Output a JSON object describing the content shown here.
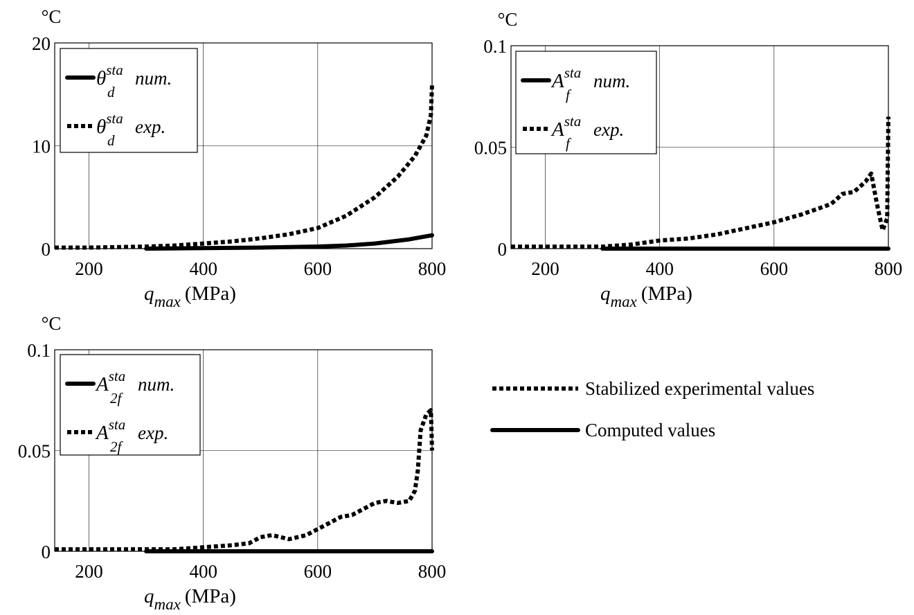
{
  "chart_data": [
    {
      "type": "line",
      "unit_label": "°C",
      "xlabel_var": "q",
      "xlabel_sub": "max",
      "xlabel_unit": "(MPa)",
      "xlim": [
        140,
        800
      ],
      "ylim": [
        0,
        20
      ],
      "xticks": [
        200,
        400,
        600,
        800
      ],
      "xtick_labels": [
        "200",
        "400",
        "600",
        "800"
      ],
      "yticks": [
        0,
        10,
        20
      ],
      "ytick_labels": [
        "0",
        "10",
        "20"
      ],
      "grid": true,
      "legend_position": "top-left",
      "series": [
        {
          "name": "θ sta d num.",
          "legend_symbol": "θ",
          "legend_sup": "sta",
          "legend_sub": "d",
          "legend_suffix": "num.",
          "style": "solid",
          "x": [
            300,
            400,
            500,
            600,
            650,
            700,
            730,
            760,
            800
          ],
          "y": [
            0,
            0.05,
            0.1,
            0.2,
            0.3,
            0.5,
            0.7,
            0.9,
            1.3
          ]
        },
        {
          "name": "θ sta d exp.",
          "legend_symbol": "θ",
          "legend_sup": "sta",
          "legend_sub": "d",
          "legend_suffix": "exp.",
          "style": "dotted",
          "x": [
            140,
            200,
            250,
            300,
            350,
            400,
            450,
            500,
            550,
            600,
            650,
            700,
            740,
            770,
            790,
            798,
            800
          ],
          "y": [
            0.1,
            0.1,
            0.15,
            0.2,
            0.3,
            0.5,
            0.7,
            1.0,
            1.4,
            2.0,
            3.2,
            5.0,
            7.0,
            9.0,
            11.0,
            13.0,
            16.0
          ]
        }
      ]
    },
    {
      "type": "line",
      "unit_label": "°C",
      "xlabel_var": "q",
      "xlabel_sub": "max",
      "xlabel_unit": "(MPa)",
      "xlim": [
        140,
        800
      ],
      "ylim": [
        0,
        0.1
      ],
      "xticks": [
        200,
        400,
        600,
        800
      ],
      "xtick_labels": [
        "200",
        "400",
        "600",
        "800"
      ],
      "yticks": [
        0,
        0.05,
        0.1
      ],
      "ytick_labels": [
        "0",
        "0.05",
        "0.1"
      ],
      "grid": true,
      "legend_position": "top-left",
      "series": [
        {
          "name": "A sta f num.",
          "legend_symbol": "A",
          "legend_sup": "sta",
          "legend_sub": "f",
          "legend_suffix": "num.",
          "style": "solid",
          "x": [
            300,
            800
          ],
          "y": [
            0,
            0
          ]
        },
        {
          "name": "A sta f exp.",
          "legend_symbol": "A",
          "legend_sup": "sta",
          "legend_sub": "f",
          "legend_suffix": "exp.",
          "style": "dotted",
          "x": [
            140,
            200,
            300,
            350,
            400,
            450,
            500,
            550,
            600,
            650,
            680,
            700,
            720,
            740,
            760,
            770,
            780,
            790,
            798,
            800
          ],
          "y": [
            0.001,
            0.001,
            0.001,
            0.002,
            0.004,
            0.005,
            0.007,
            0.01,
            0.013,
            0.017,
            0.02,
            0.022,
            0.027,
            0.028,
            0.033,
            0.037,
            0.022,
            0.009,
            0.015,
            0.065
          ]
        }
      ]
    },
    {
      "type": "line",
      "unit_label": "°C",
      "xlabel_var": "q",
      "xlabel_sub": "max",
      "xlabel_unit": "(MPa)",
      "xlim": [
        140,
        800
      ],
      "ylim": [
        0,
        0.1
      ],
      "xticks": [
        200,
        400,
        600,
        800
      ],
      "xtick_labels": [
        "200",
        "400",
        "600",
        "800"
      ],
      "yticks": [
        0,
        0.05,
        0.1
      ],
      "ytick_labels": [
        "0",
        "0.05",
        "0.1"
      ],
      "grid": true,
      "legend_position": "top-left",
      "series": [
        {
          "name": "A sta 2f num.",
          "legend_symbol": "A",
          "legend_sup": "sta",
          "legend_sub": "2f",
          "legend_suffix": "num.",
          "style": "solid",
          "x": [
            300,
            800
          ],
          "y": [
            0,
            0
          ]
        },
        {
          "name": "A sta 2f exp.",
          "legend_symbol": "A",
          "legend_sup": "sta",
          "legend_sub": "2f",
          "legend_suffix": "exp.",
          "style": "dotted",
          "x": [
            140,
            200,
            300,
            350,
            400,
            450,
            480,
            500,
            520,
            550,
            580,
            600,
            620,
            640,
            660,
            680,
            700,
            720,
            740,
            760,
            770,
            775,
            780,
            790,
            798,
            800
          ],
          "y": [
            0.001,
            0.001,
            0.001,
            0.001,
            0.002,
            0.003,
            0.004,
            0.007,
            0.008,
            0.006,
            0.008,
            0.011,
            0.014,
            0.017,
            0.018,
            0.021,
            0.024,
            0.025,
            0.024,
            0.025,
            0.03,
            0.04,
            0.06,
            0.068,
            0.07,
            0.05
          ]
        }
      ]
    }
  ],
  "global_legend": {
    "position": "right",
    "items": [
      {
        "label": "Stabilized experimental values",
        "style": "dotted"
      },
      {
        "label": "Computed values",
        "style": "solid"
      }
    ]
  }
}
